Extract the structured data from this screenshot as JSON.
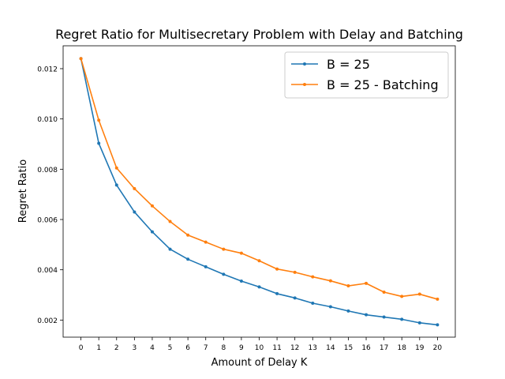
{
  "chart_data": {
    "type": "line",
    "title": "Regret Ratio for Multisecretary Problem with Delay and Batching",
    "xlabel": "Amount of Delay K",
    "ylabel": "Regret Ratio",
    "x": [
      0,
      1,
      2,
      3,
      4,
      5,
      6,
      7,
      8,
      9,
      10,
      11,
      12,
      13,
      14,
      15,
      16,
      17,
      18,
      19,
      20
    ],
    "xticks": [
      "0",
      "1",
      "2",
      "3",
      "4",
      "5",
      "6",
      "7",
      "8",
      "9",
      "10",
      "11",
      "12",
      "13",
      "14",
      "15",
      "16",
      "17",
      "18",
      "19",
      "20"
    ],
    "yticks": [
      "0.002",
      "0.004",
      "0.006",
      "0.008",
      "0.010",
      "0.012"
    ],
    "ytick_values": [
      0.002,
      0.004,
      0.006,
      0.008,
      0.01,
      0.012
    ],
    "xlim": [
      -1,
      21
    ],
    "ylim": [
      0.00132,
      0.01291
    ],
    "grid": false,
    "legend_position": "top-right",
    "series": [
      {
        "name": "B = 25",
        "color": "#1f77b4",
        "values": [
          0.0124,
          0.00903,
          0.00737,
          0.0063,
          0.00551,
          0.00482,
          0.00442,
          0.00412,
          0.00382,
          0.00355,
          0.00332,
          0.00305,
          0.00288,
          0.00267,
          0.00253,
          0.00236,
          0.00221,
          0.00212,
          0.00203,
          0.00189,
          0.00181
        ]
      },
      {
        "name": "B = 25 - Batching",
        "color": "#ff7f0e",
        "values": [
          0.0124,
          0.00995,
          0.00805,
          0.00723,
          0.00654,
          0.00592,
          0.00538,
          0.0051,
          0.00482,
          0.00466,
          0.00436,
          0.00403,
          0.0039,
          0.00372,
          0.00356,
          0.00336,
          0.00346,
          0.00311,
          0.00294,
          0.00303,
          0.00283
        ]
      }
    ]
  }
}
